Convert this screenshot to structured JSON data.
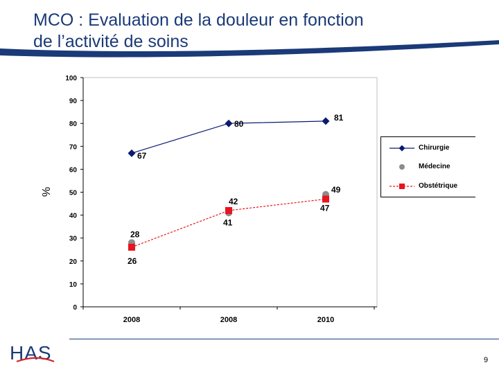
{
  "page": {
    "title_line1": "MCO : Evaluation de la douleur en fonction",
    "title_line2": "de l’activité de soins",
    "page_number": "9",
    "logo_text": "HAS"
  },
  "colors": {
    "title": "#1a3a78",
    "chirurgie": "#0a1a6e",
    "medecine": "#8c8c8c",
    "obstetrique": "#e8141e",
    "logo_blue": "#1a3a78",
    "logo_red": "#d2232a"
  },
  "chart_data": {
    "type": "line",
    "ylabel": "%",
    "xlabel": "",
    "ylim": [
      0,
      100
    ],
    "yticks": [
      0,
      10,
      20,
      30,
      40,
      50,
      60,
      70,
      80,
      90,
      100
    ],
    "categories": [
      "2008",
      "2008",
      "2010"
    ],
    "grid": false,
    "legend_position": "right",
    "series": [
      {
        "name": "Chirurgie",
        "values": [
          67,
          80,
          81
        ],
        "labels": [
          "67",
          "80",
          "81"
        ],
        "marker": "diamond",
        "line": "solid"
      },
      {
        "name": "Médecine",
        "values": [
          28,
          41,
          49
        ],
        "labels": [
          "28",
          "41",
          "49"
        ],
        "marker": "circle",
        "line": "none"
      },
      {
        "name": "Obstétrique",
        "values": [
          26,
          42,
          47
        ],
        "labels": [
          "26",
          "42",
          "47"
        ],
        "marker": "square",
        "line": "dashed"
      }
    ]
  }
}
